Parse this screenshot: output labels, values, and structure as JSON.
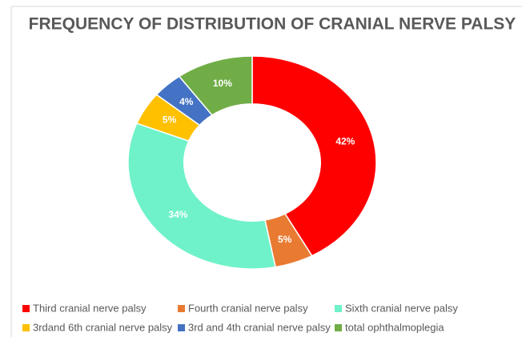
{
  "chart_data": {
    "type": "donut",
    "title": "FREQUENCY OF DISTRIBUTION OF CRANIAL NERVE PALSY",
    "categories": [
      "Third cranial nerve palsy",
      "Fourth cranial nerve palsy",
      "Sixth cranial nerve palsy",
      "3rdand 6th cranial nerve palsy",
      "3rd and 4th cranial nerve palsy",
      "total ophthalmoplegia"
    ],
    "values": [
      42,
      5,
      34,
      5,
      4,
      10
    ],
    "value_labels": [
      "42%",
      "5%",
      "34%",
      "5%",
      "4%",
      "10%"
    ],
    "colors": [
      "#ff0000",
      "#e97a32",
      "#6ff2c9",
      "#ffc000",
      "#4472c4",
      "#70ad47"
    ],
    "legend": "bottom"
  }
}
